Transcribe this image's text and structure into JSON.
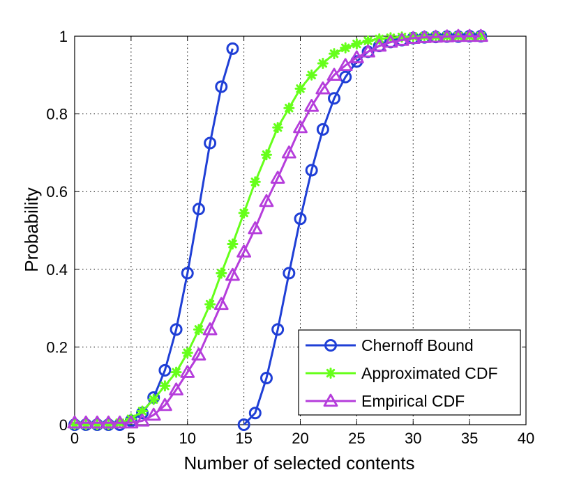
{
  "chart_data": {
    "type": "line",
    "title": "",
    "xlabel": "Number of selected contents",
    "ylabel": "Probability",
    "xlim": [
      0,
      40
    ],
    "ylim": [
      0,
      1
    ],
    "grid": true,
    "legend_position": "bottom-right",
    "x_ticks": [
      {
        "value": 0,
        "label": "0"
      },
      {
        "value": 5,
        "label": "5"
      },
      {
        "value": 10,
        "label": "10"
      },
      {
        "value": 15,
        "label": "15"
      },
      {
        "value": 20,
        "label": "20"
      },
      {
        "value": 25,
        "label": "25"
      },
      {
        "value": 30,
        "label": "30"
      },
      {
        "value": 35,
        "label": "35"
      },
      {
        "value": 40,
        "label": "40"
      }
    ],
    "y_ticks": [
      {
        "value": 0,
        "label": "0"
      },
      {
        "value": 0.2,
        "label": "0.2"
      },
      {
        "value": 0.4,
        "label": "0.4"
      },
      {
        "value": 0.6,
        "label": "0.6"
      },
      {
        "value": 0.8,
        "label": "0.8"
      },
      {
        "value": 1,
        "label": "1"
      }
    ],
    "series": [
      {
        "name": "Chernoff Bound",
        "color": "#1f3fd6",
        "marker": "circle",
        "segments": [
          {
            "x": [
              0,
              1,
              2,
              3,
              4,
              5,
              6,
              7,
              8,
              9,
              10,
              11,
              12,
              13,
              14
            ],
            "y": [
              0,
              0,
              0,
              0,
              0,
              0.01,
              0.03,
              0.07,
              0.14,
              0.245,
              0.39,
              0.555,
              0.725,
              0.87,
              0.968
            ]
          },
          {
            "x": [
              15,
              16,
              17,
              18,
              19,
              20,
              21,
              22,
              23,
              24,
              25,
              26,
              27,
              28,
              29,
              30,
              31,
              32,
              33,
              34,
              35,
              36
            ],
            "y": [
              0,
              0.03,
              0.12,
              0.245,
              0.39,
              0.53,
              0.655,
              0.76,
              0.84,
              0.895,
              0.935,
              0.96,
              0.975,
              0.985,
              0.99,
              0.995,
              0.997,
              0.998,
              0.999,
              0.999,
              1,
              1
            ]
          }
        ]
      },
      {
        "name": "Approximated CDF",
        "color": "#66ff1a",
        "marker": "star",
        "segments": [
          {
            "x": [
              0,
              1,
              2,
              3,
              4,
              5,
              6,
              7,
              8,
              9,
              10,
              11,
              12,
              13,
              14,
              15,
              16,
              17,
              18,
              19,
              20,
              21,
              22,
              23,
              24,
              25,
              26,
              27,
              28,
              29,
              30,
              31,
              32,
              33,
              34,
              35,
              36
            ],
            "y": [
              0,
              0,
              0,
              0,
              0.005,
              0.015,
              0.035,
              0.065,
              0.1,
              0.135,
              0.185,
              0.245,
              0.31,
              0.39,
              0.465,
              0.545,
              0.625,
              0.695,
              0.765,
              0.815,
              0.865,
              0.9,
              0.93,
              0.955,
              0.97,
              0.98,
              0.988,
              0.993,
              0.996,
              0.998,
              0.999,
              1,
              1,
              1,
              1,
              1,
              1
            ]
          }
        ]
      },
      {
        "name": "Empirical CDF",
        "color": "#b53ddb",
        "marker": "triangle",
        "segments": [
          {
            "x": [
              0,
              1,
              2,
              3,
              4,
              5,
              6,
              7,
              8,
              9,
              10,
              11,
              12,
              13,
              14,
              15,
              16,
              17,
              18,
              19,
              20,
              21,
              22,
              23,
              24,
              25,
              26,
              27,
              28,
              29,
              30,
              31,
              32,
              33,
              34,
              35,
              36
            ],
            "y": [
              0.005,
              0.005,
              0.005,
              0.005,
              0.005,
              0.005,
              0.01,
              0.025,
              0.05,
              0.09,
              0.135,
              0.18,
              0.245,
              0.31,
              0.385,
              0.445,
              0.505,
              0.575,
              0.635,
              0.7,
              0.765,
              0.82,
              0.865,
              0.9,
              0.925,
              0.945,
              0.96,
              0.975,
              0.985,
              0.99,
              0.995,
              0.997,
              0.998,
              0.999,
              1,
              1,
              1
            ]
          }
        ]
      }
    ]
  }
}
